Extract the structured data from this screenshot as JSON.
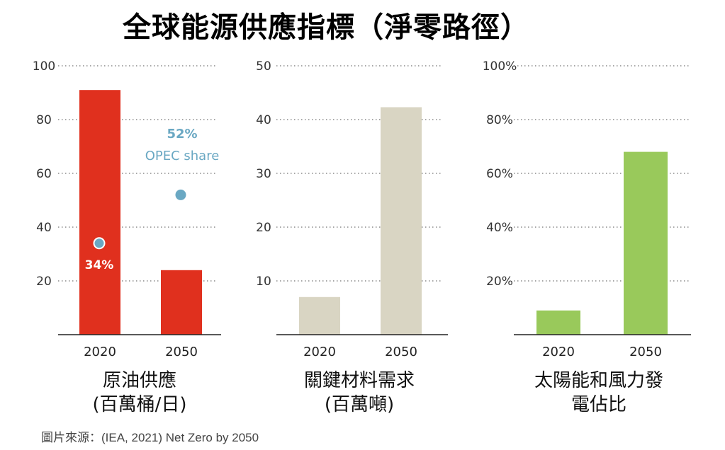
{
  "title": "全球能源供應指標（淨零路徑）",
  "source": "圖片來源：(IEA, 2021) Net Zero by 2050",
  "colors": {
    "oil": "#e0301e",
    "materials": "#d9d5c3",
    "renewables": "#99c95b",
    "opec": "#6aa8c3"
  },
  "chart_data": [
    {
      "type": "bar",
      "categories": [
        "2020",
        "2050"
      ],
      "values": [
        91,
        24
      ],
      "ylim": [
        0,
        100
      ],
      "yticks": [
        20,
        40,
        60,
        80,
        100
      ],
      "ytick_labels": [
        "20",
        "40",
        "60",
        "80",
        "100"
      ],
      "xlabel": [
        "原油供應",
        "(百萬桶/日)"
      ],
      "color": "#e0301e",
      "overlay": {
        "type": "scatter",
        "label": "OPEC share",
        "points": [
          {
            "x": "2020",
            "y": 34,
            "label": "34%"
          },
          {
            "x": "2050",
            "y": 52,
            "label": "52%"
          }
        ]
      }
    },
    {
      "type": "bar",
      "categories": [
        "2020",
        "2050"
      ],
      "values": [
        7,
        42.3
      ],
      "ylim": [
        0,
        50
      ],
      "yticks": [
        10,
        20,
        30,
        40,
        50
      ],
      "ytick_labels": [
        "10",
        "20",
        "30",
        "40",
        "50"
      ],
      "xlabel": [
        "關鍵材料需求",
        "(百萬噸)"
      ],
      "color": "#d9d5c3"
    },
    {
      "type": "bar",
      "categories": [
        "2020",
        "2050"
      ],
      "values": [
        9,
        68
      ],
      "ylim": [
        0,
        100
      ],
      "yticks": [
        20,
        40,
        60,
        80,
        100
      ],
      "ytick_labels": [
        "20%",
        "40%",
        "60%",
        "80%",
        "100%"
      ],
      "xlabel": [
        "太陽能和風力發",
        "電佔比"
      ],
      "color": "#99c95b"
    }
  ]
}
